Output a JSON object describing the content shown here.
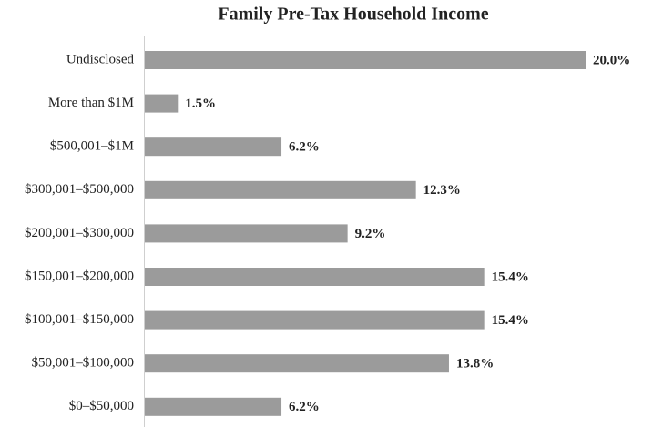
{
  "chart_data": {
    "type": "hbar",
    "title": "Family Pre-Tax Household Income",
    "categories": [
      "Undisclosed",
      "More than $1M",
      "$500,001–$1M",
      "$300,001–$500,000",
      "$200,001–$300,000",
      "$150,001–$200,000",
      "$100,001–$150,000",
      "$50,001–$100,000",
      "$0–$50,000"
    ],
    "values": [
      20.0,
      1.5,
      6.2,
      12.3,
      9.2,
      15.4,
      15.4,
      13.8,
      6.2
    ],
    "value_labels": [
      "20.0%",
      "1.5%",
      "6.2%",
      "12.3%",
      "9.2%",
      "15.4%",
      "15.4%",
      "13.8%",
      "6.2%"
    ],
    "color": "#9b9b9b"
  }
}
